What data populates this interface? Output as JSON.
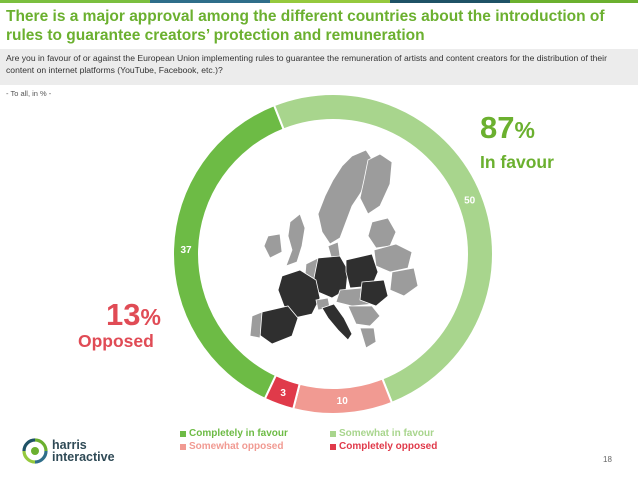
{
  "header": {
    "title": "There is a major approval among the different countries about the introduction of rules to guarantee creators’ protection and remuneration",
    "question": "Are you in favour of or against the European Union implementing rules to guarantee the remuneration of artists and content creators for the distribution of their content on internet platforms (YouTube, Facebook, etc.)?",
    "base": "- To all, in % -"
  },
  "summary": {
    "favour_pct": "87",
    "favour_symbol": "%",
    "favour_label": "In favour",
    "opposed_pct": "13",
    "opposed_symbol": "%",
    "opposed_label": "Opposed"
  },
  "chart_data": {
    "type": "pie",
    "donut": true,
    "categories": [
      "Completely in favour",
      "Somewhat in favour",
      "Somewhat opposed",
      "Completely opposed"
    ],
    "values": [
      37,
      50,
      10,
      3
    ],
    "colors": [
      "#6dbb45",
      "#a8d58d",
      "#f19a92",
      "#e03a4a"
    ],
    "legend_position": "bottom"
  },
  "colors": {
    "title": "#6bb02f",
    "favour": "#6bb02f",
    "opposed": "#e04b55",
    "map_dark": "#2f2f2f",
    "map_light": "#9c9c9c"
  },
  "icons": {
    "map": "europe-map-icon",
    "logo": "harris-interactive-logo-icon"
  },
  "footer": {
    "logo_text_line1": "harris",
    "logo_text_line2": "interactive",
    "page_number": "18"
  }
}
